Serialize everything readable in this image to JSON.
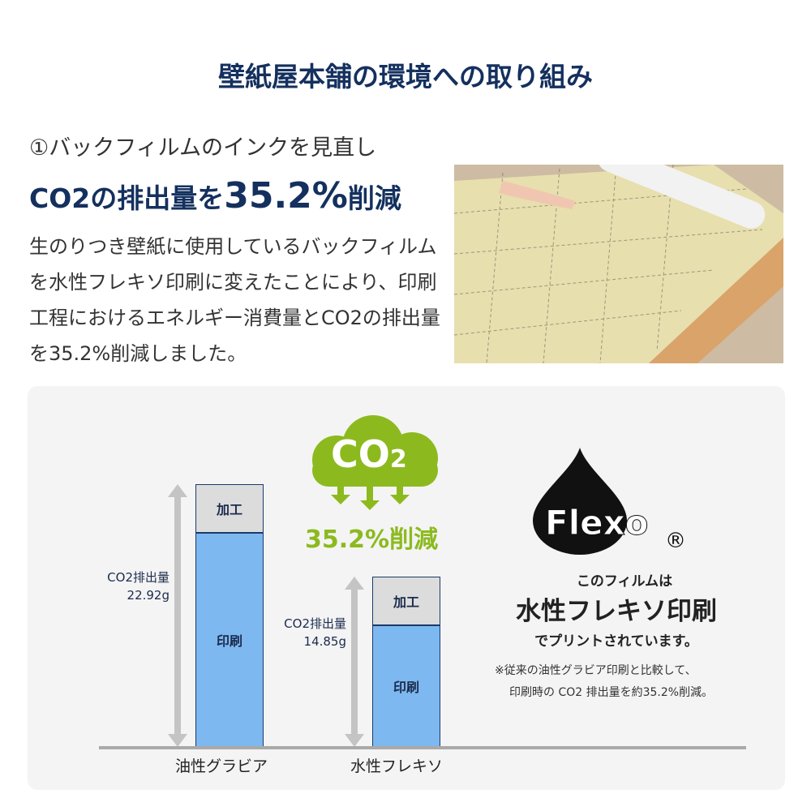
{
  "title": "壁紙屋本舗の環境への取り組み",
  "section": {
    "step": "①バックフィルムのインクを見直し",
    "headline_pre": "CO2の排出量を",
    "headline_value": "35.2%",
    "headline_post": "削減",
    "body": "生のりつき壁紙に使用しているバックフィルムを水性フレキソ印刷に変えたことにより、印刷工程におけるエネルギー消費量とCO2の排出量を35.2%削減しました。"
  },
  "co2_badge": {
    "text": "CO",
    "sub": "2",
    "reduction": "35.2%削減",
    "color": "#8cba1e"
  },
  "flexo": {
    "logo": "Flexo",
    "registered": "®",
    "line1": "このフィルムは",
    "line2": "水性フレキソ印刷",
    "line3": "でプリントされています。",
    "note1": "※従来の油性グラビア印刷と比較して、",
    "note2": "印刷時の CO2 排出量を約35.2%削減。"
  },
  "chart_data": {
    "type": "bar",
    "stacked": true,
    "categories": [
      "油性グラビア",
      "水性フレキソ"
    ],
    "series": [
      {
        "name": "印刷",
        "values": [
          18.7,
          10.6
        ],
        "color": "#7db8f0"
      },
      {
        "name": "加工",
        "values": [
          4.22,
          4.25
        ],
        "color": "#dcdcdc"
      }
    ],
    "totals": [
      22.92,
      14.85
    ],
    "total_labels": [
      [
        "CO2排出量",
        "22.92g"
      ],
      [
        "CO2排出量",
        "14.85g"
      ]
    ],
    "unit": "g",
    "ylim": [
      0,
      22.92
    ],
    "grid": false
  }
}
